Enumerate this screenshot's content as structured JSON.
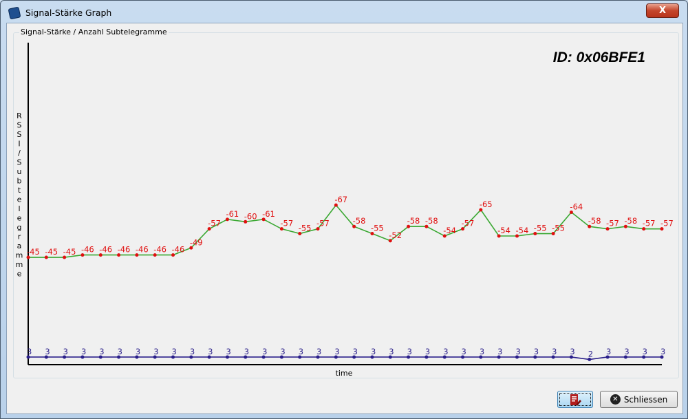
{
  "window": {
    "title": "Signal-Stärke Graph",
    "close_label": "X"
  },
  "group": {
    "label": "Signal-Stärke / Anzahl Subtelegramme"
  },
  "id_label": "ID: 0x06BFE1",
  "buttons": {
    "edit_icon": "report-edit-icon",
    "close_label": "Schliessen",
    "close_icon": "close-circle-icon"
  },
  "chart_data": {
    "type": "line",
    "ylabel": "RSSI / Subtelegramme",
    "xlabel": "time",
    "colors": {
      "rssi_line": "#3aa832",
      "rssi_points": "#e01010",
      "sub_line": "#2a1f8a"
    },
    "series": [
      {
        "values": [
          -45,
          -45,
          -45,
          -46,
          -46,
          -46,
          -46,
          -46,
          -46,
          -49,
          -57,
          -61,
          -60,
          -61,
          -57,
          -55,
          -57,
          -67,
          -58,
          -55,
          -52,
          -58,
          -58,
          -54,
          -57,
          -65,
          -54,
          -54,
          -55,
          -55,
          -64,
          -58,
          -57,
          -58,
          -57,
          -57
        ]
      },
      {
        "values": [
          3,
          3,
          3,
          3,
          3,
          3,
          3,
          3,
          3,
          3,
          3,
          3,
          3,
          3,
          3,
          3,
          3,
          3,
          3,
          3,
          3,
          3,
          3,
          3,
          3,
          3,
          3,
          3,
          3,
          3,
          3,
          2,
          3,
          3,
          3,
          3
        ]
      }
    ]
  }
}
